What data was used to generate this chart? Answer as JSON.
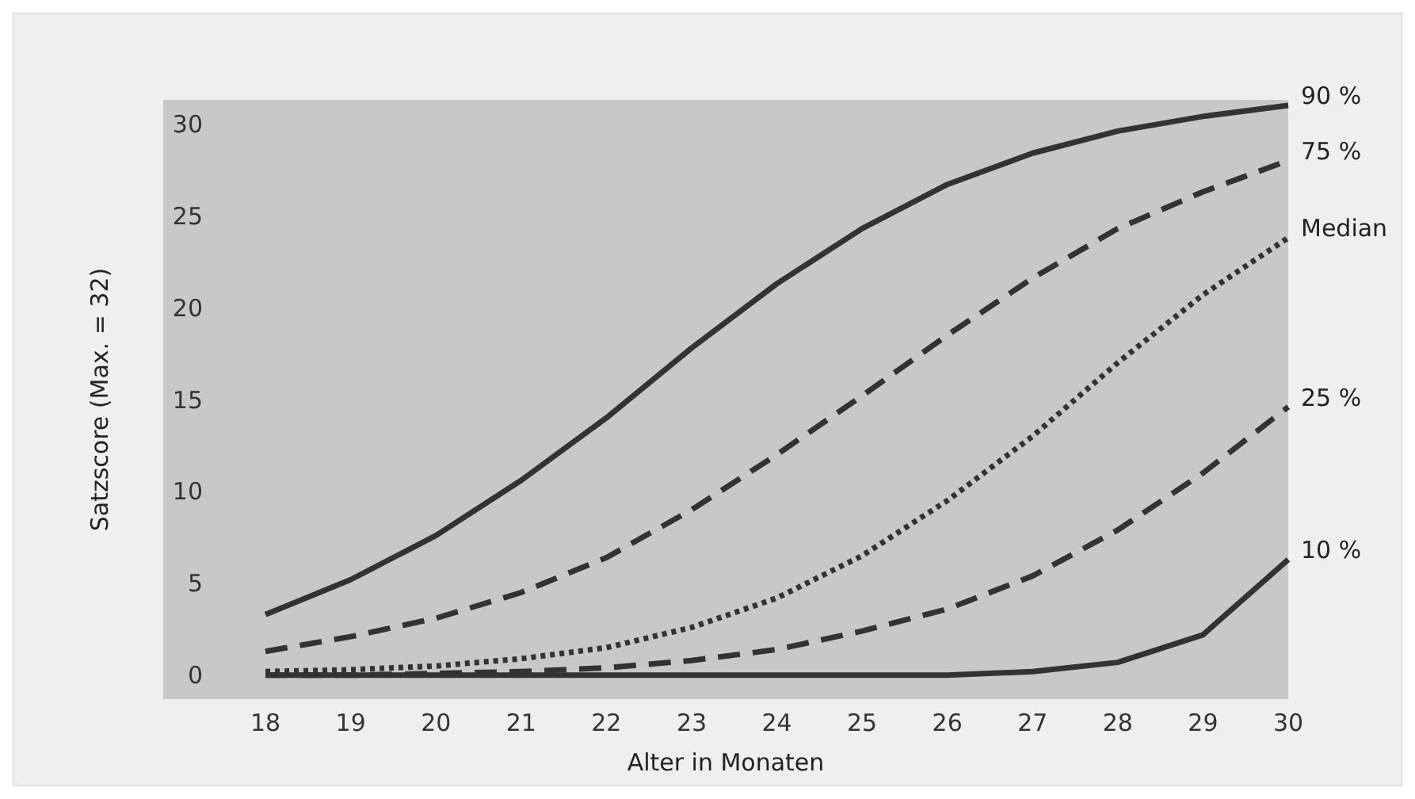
{
  "chart_data": {
    "type": "line",
    "xlabel": "Alter in Monaten",
    "ylabel": "Satzscore (Max. = 32)",
    "x": [
      18,
      19,
      20,
      21,
      22,
      23,
      24,
      25,
      26,
      27,
      28,
      29,
      30
    ],
    "xlim": [
      16.8,
      30
    ],
    "xticks": [
      18,
      19,
      20,
      21,
      22,
      23,
      24,
      25,
      26,
      27,
      28,
      29,
      30
    ],
    "ylim": [
      -1.3,
      31.3
    ],
    "yticks": [
      0,
      5,
      10,
      15,
      20,
      25,
      30
    ],
    "grid": false,
    "series": [
      {
        "name": "90 %",
        "color": "#333333",
        "line_style": "solid",
        "values": [
          3.3,
          5.2,
          7.6,
          10.6,
          14.0,
          17.8,
          21.3,
          24.3,
          26.7,
          28.4,
          29.6,
          30.4,
          31.0
        ]
      },
      {
        "name": "75 %",
        "color": "#333333",
        "line_style": "dashed",
        "values": [
          1.3,
          2.1,
          3.1,
          4.5,
          6.4,
          9.0,
          12.0,
          15.2,
          18.5,
          21.6,
          24.3,
          26.3,
          28.0
        ]
      },
      {
        "name": "Median",
        "color": "#333333",
        "line_style": "dotted",
        "values": [
          0.2,
          0.3,
          0.5,
          0.9,
          1.5,
          2.6,
          4.2,
          6.5,
          9.5,
          13.0,
          17.0,
          20.7,
          23.8
        ]
      },
      {
        "name": "25 %",
        "color": "#333333",
        "line_style": "dashed",
        "values": [
          0,
          0,
          0.1,
          0.2,
          0.4,
          0.8,
          1.4,
          2.4,
          3.6,
          5.4,
          7.9,
          11.0,
          14.6
        ]
      },
      {
        "name": "10 %",
        "color": "#333333",
        "line_style": "solid",
        "values": [
          0,
          0,
          0,
          0,
          0,
          0,
          0,
          0,
          0,
          0.2,
          0.7,
          2.2,
          6.3
        ]
      }
    ]
  }
}
